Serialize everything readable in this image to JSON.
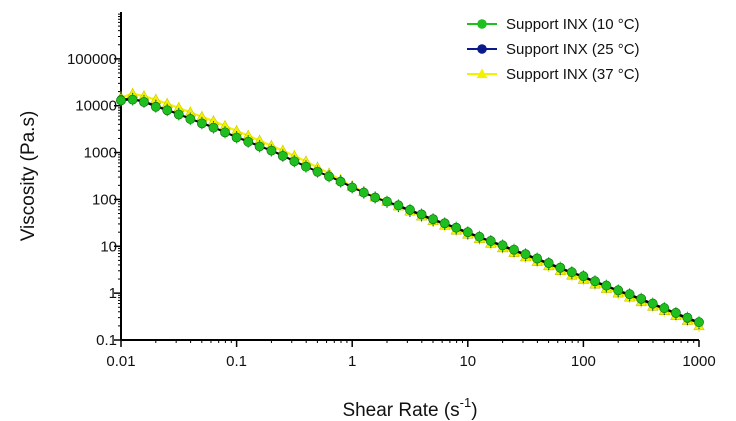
{
  "chart_data": {
    "type": "line",
    "title": "",
    "xlabel": "Shear Rate (s",
    "xlabel_sup": "-1",
    "xlabel_close": ")",
    "ylabel": "Viscosity (Pa.s)",
    "x_scale": "log",
    "y_scale": "log",
    "xlim": [
      0.01,
      1000
    ],
    "ylim": [
      0.1,
      1000000
    ],
    "x_ticks": [
      0.01,
      0.1,
      1,
      10,
      100,
      1000
    ],
    "x_tick_labels": [
      "0.01",
      "0.1",
      "1",
      "10",
      "100",
      "1000"
    ],
    "y_ticks": [
      0.1,
      1,
      10,
      100,
      1000,
      10000,
      100000
    ],
    "y_tick_labels": [
      "0.1",
      "1",
      "10",
      "100",
      "1000",
      "10000",
      "100000"
    ],
    "grid": false,
    "legend_position": "top-right",
    "series": [
      {
        "name": "Support INX (10 °C)",
        "color": "#1ebf1e",
        "marker": "circle",
        "x": [
          0.01,
          0.0126,
          0.0158,
          0.02,
          0.0251,
          0.0316,
          0.0398,
          0.0501,
          0.0631,
          0.0794,
          0.1,
          0.126,
          0.158,
          0.2,
          0.251,
          0.316,
          0.398,
          0.501,
          0.631,
          0.794,
          1,
          1.26,
          1.58,
          2,
          2.51,
          3.16,
          3.98,
          5.01,
          6.31,
          7.94,
          10,
          12.6,
          15.8,
          20,
          25.1,
          31.6,
          39.8,
          50.1,
          63.1,
          79.4,
          100,
          126,
          158,
          200,
          251,
          316,
          398,
          501,
          631,
          794,
          1000
        ],
        "y": [
          13000,
          13500,
          12000,
          9500,
          8000,
          6500,
          5200,
          4200,
          3400,
          2700,
          2100,
          1700,
          1350,
          1100,
          850,
          650,
          500,
          390,
          310,
          240,
          180,
          140,
          110,
          90,
          75,
          60,
          48,
          38,
          31,
          25,
          20,
          16,
          13,
          10.5,
          8.5,
          6.8,
          5.5,
          4.4,
          3.5,
          2.8,
          2.3,
          1.8,
          1.45,
          1.15,
          0.95,
          0.76,
          0.6,
          0.48,
          0.38,
          0.3,
          0.24
        ]
      },
      {
        "name": "Support INX (25 °C)",
        "color": "#0a1a8c",
        "marker": "circle",
        "x": [
          0.01,
          0.0126,
          0.0158,
          0.02,
          0.0251,
          0.0316,
          0.0398,
          0.0501,
          0.0631,
          0.0794,
          0.1,
          0.126,
          0.158,
          0.2,
          0.251,
          0.316,
          0.398,
          0.501,
          0.631,
          0.794,
          1,
          1.26,
          1.58,
          2,
          2.51,
          3.16,
          3.98,
          5.01,
          6.31,
          7.94,
          10,
          12.6,
          15.8,
          20,
          25.1,
          31.6,
          39.8,
          50.1,
          63.1,
          79.4,
          100,
          126,
          158,
          200,
          251,
          316,
          398,
          501,
          631,
          794,
          1000
        ],
        "y": [
          14000,
          14000,
          12500,
          10000,
          8200,
          6700,
          5300,
          4300,
          3500,
          2750,
          2150,
          1750,
          1380,
          1120,
          870,
          660,
          510,
          395,
          315,
          245,
          185,
          140,
          110,
          88,
          72,
          57,
          46,
          36,
          30,
          24,
          19,
          15.5,
          12.5,
          10,
          8,
          6.5,
          5.2,
          4.2,
          3.3,
          2.7,
          2.2,
          1.7,
          1.4,
          1.1,
          0.9,
          0.72,
          0.57,
          0.46,
          0.36,
          0.28,
          0.23
        ]
      },
      {
        "name": "Support INX (37 °C)",
        "color": "#f2f200",
        "marker": "triangle",
        "x": [
          0.01,
          0.0126,
          0.0158,
          0.02,
          0.0251,
          0.0316,
          0.0398,
          0.0501,
          0.0631,
          0.0794,
          0.1,
          0.126,
          0.158,
          0.2,
          0.251,
          0.316,
          0.398,
          0.501,
          0.631,
          0.794,
          1,
          1.26,
          1.58,
          2,
          2.51,
          3.16,
          3.98,
          5.01,
          6.31,
          7.94,
          10,
          12.6,
          15.8,
          20,
          25.1,
          31.6,
          39.8,
          50.1,
          63.1,
          79.4,
          100,
          126,
          158,
          200,
          251,
          316,
          398,
          501,
          631,
          794,
          1000
        ],
        "y": [
          15000,
          18000,
          16000,
          13500,
          11000,
          9000,
          7200,
          5800,
          4700,
          3700,
          2900,
          2300,
          1800,
          1400,
          1100,
          850,
          650,
          480,
          360,
          260,
          190,
          145,
          112,
          90,
          72,
          56,
          44,
          35,
          28,
          22,
          18,
          14.5,
          11.5,
          9.2,
          7.3,
          5.9,
          4.7,
          3.8,
          3,
          2.4,
          1.95,
          1.55,
          1.25,
          1,
          0.82,
          0.65,
          0.52,
          0.42,
          0.33,
          0.26,
          0.2
        ]
      }
    ]
  }
}
